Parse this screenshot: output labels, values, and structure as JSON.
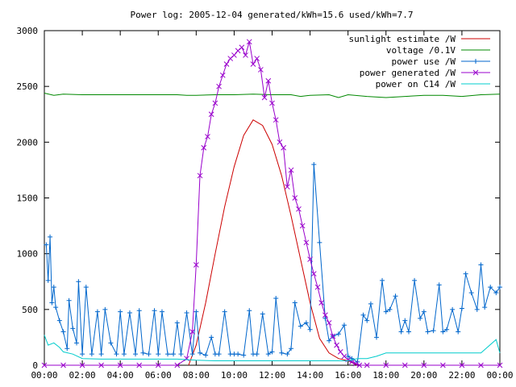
{
  "chart_data": {
    "type": "line",
    "title": "Power log: 2005-12-04 generated/kWh=15.6 used/kWh=7.7",
    "xlabel": "",
    "ylabel": "",
    "xlim": [
      0,
      24
    ],
    "ylim": [
      0,
      3000
    ],
    "x_ticks": [
      "00:00",
      "02:00",
      "04:00",
      "06:00",
      "08:00",
      "10:00",
      "12:00",
      "14:00",
      "16:00",
      "18:00",
      "20:00",
      "22:00",
      "00:00"
    ],
    "y_ticks": [
      0,
      500,
      1000,
      1500,
      2000,
      2500,
      3000
    ],
    "grid": false,
    "legend_position": "top-right",
    "series": [
      {
        "name": "sunlight estimate /W",
        "color": "#cc0000",
        "marker": "none",
        "x": [
          7.6,
          8.0,
          8.5,
          9.0,
          9.5,
          10.0,
          10.5,
          11.0,
          11.5,
          12.0,
          12.5,
          13.0,
          13.5,
          14.0,
          14.5,
          15.0,
          15.5,
          16.0,
          16.5
        ],
        "values": [
          0,
          180,
          560,
          1000,
          1420,
          1780,
          2060,
          2200,
          2150,
          1980,
          1700,
          1340,
          950,
          560,
          240,
          110,
          60,
          40,
          0
        ]
      },
      {
        "name": "voltage /0.1V",
        "color": "#008800",
        "marker": "none",
        "x": [
          0,
          0.5,
          1,
          2,
          3,
          4,
          5,
          6,
          7,
          7.5,
          8,
          9,
          10,
          11,
          12,
          13,
          13.5,
          14,
          15,
          15.5,
          16,
          17,
          18,
          19,
          20,
          21,
          22,
          23,
          24
        ],
        "values": [
          2440,
          2420,
          2430,
          2425,
          2425,
          2425,
          2425,
          2425,
          2425,
          2420,
          2420,
          2425,
          2425,
          2430,
          2425,
          2425,
          2410,
          2420,
          2425,
          2400,
          2425,
          2410,
          2400,
          2410,
          2420,
          2420,
          2410,
          2425,
          2430
        ]
      },
      {
        "name": "power use /W",
        "color": "#0066cc",
        "marker": "plus",
        "x": [
          0.1,
          0.2,
          0.3,
          0.4,
          0.5,
          0.6,
          0.8,
          1.0,
          1.2,
          1.3,
          1.5,
          1.7,
          1.8,
          2.0,
          2.2,
          2.5,
          2.8,
          3.0,
          3.2,
          3.5,
          3.8,
          4.0,
          4.2,
          4.5,
          4.8,
          5.0,
          5.2,
          5.5,
          5.8,
          6.0,
          6.2,
          6.5,
          6.8,
          7.0,
          7.2,
          7.5,
          7.8,
          8.0,
          8.2,
          8.5,
          8.8,
          9.0,
          9.2,
          9.5,
          9.8,
          10.0,
          10.2,
          10.5,
          10.8,
          11.0,
          11.2,
          11.5,
          11.8,
          12.0,
          12.2,
          12.5,
          12.8,
          13.0,
          13.2,
          13.5,
          13.8,
          14.0,
          14.2,
          14.5,
          14.8,
          15.0,
          15.2,
          15.5,
          15.8,
          16.0,
          16.2,
          16.5,
          16.8,
          17.0,
          17.2,
          17.5,
          17.8,
          18.0,
          18.2,
          18.5,
          18.8,
          19.0,
          19.2,
          19.5,
          19.8,
          20.0,
          20.2,
          20.5,
          20.8,
          21.0,
          21.2,
          21.5,
          21.8,
          22.0,
          22.2,
          22.5,
          22.8,
          23.0,
          23.2,
          23.5,
          23.8,
          24.0
        ],
        "values": [
          1080,
          760,
          1150,
          560,
          700,
          520,
          400,
          300,
          150,
          580,
          330,
          200,
          750,
          100,
          700,
          100,
          480,
          100,
          500,
          200,
          100,
          480,
          100,
          470,
          100,
          490,
          110,
          100,
          490,
          100,
          480,
          100,
          100,
          380,
          100,
          470,
          100,
          480,
          110,
          90,
          250,
          100,
          100,
          480,
          100,
          100,
          100,
          90,
          490,
          100,
          100,
          460,
          100,
          120,
          600,
          110,
          100,
          150,
          560,
          350,
          380,
          320,
          1800,
          1100,
          420,
          220,
          260,
          280,
          360,
          80,
          60,
          30,
          450,
          400,
          550,
          250,
          760,
          480,
          500,
          620,
          300,
          400,
          300,
          760,
          420,
          480,
          300,
          310,
          720,
          300,
          320,
          500,
          300,
          510,
          820,
          650,
          500,
          900,
          520,
          700,
          650,
          700
        ]
      },
      {
        "name": "power generated /W",
        "color": "#9900cc",
        "marker": "cross",
        "x": [
          0,
          1,
          2,
          3,
          4,
          5,
          6,
          7,
          7.5,
          7.8,
          8.0,
          8.2,
          8.4,
          8.6,
          8.8,
          9.0,
          9.2,
          9.4,
          9.6,
          9.8,
          10.0,
          10.2,
          10.4,
          10.6,
          10.8,
          11.0,
          11.2,
          11.4,
          11.6,
          11.8,
          12.0,
          12.2,
          12.4,
          12.6,
          12.8,
          13.0,
          13.2,
          13.4,
          13.6,
          13.8,
          14.0,
          14.2,
          14.4,
          14.6,
          14.8,
          15.0,
          15.2,
          15.4,
          15.6,
          15.8,
          16.0,
          16.2,
          16.4,
          16.6,
          17,
          18,
          19,
          20,
          21,
          22,
          23,
          24
        ],
        "values": [
          0,
          0,
          0,
          0,
          0,
          0,
          0,
          0,
          60,
          300,
          900,
          1700,
          1950,
          2050,
          2250,
          2350,
          2500,
          2600,
          2700,
          2750,
          2780,
          2820,
          2850,
          2780,
          2900,
          2700,
          2750,
          2650,
          2400,
          2550,
          2350,
          2200,
          2000,
          1950,
          1600,
          1750,
          1500,
          1400,
          1250,
          1100,
          950,
          820,
          700,
          560,
          450,
          380,
          260,
          180,
          120,
          80,
          50,
          30,
          15,
          0,
          0,
          0,
          0,
          0,
          0,
          0,
          0,
          0
        ]
      },
      {
        "name": "power on C14 /W",
        "color": "#00cccc",
        "marker": "none",
        "x": [
          0,
          0.2,
          0.5,
          0.8,
          1.0,
          1.5,
          2.0,
          3.0,
          4.0,
          5.0,
          6.0,
          7.0,
          8.0,
          9.0,
          10.0,
          11.0,
          12.0,
          13.0,
          14.0,
          15.0,
          16.0,
          16.5,
          17.0,
          17.5,
          18.0,
          19.0,
          20.0,
          21.0,
          22.0,
          23.0,
          23.8,
          24.0
        ],
        "values": [
          270,
          180,
          200,
          160,
          120,
          100,
          60,
          55,
          55,
          55,
          55,
          55,
          45,
          40,
          40,
          40,
          40,
          40,
          40,
          40,
          40,
          60,
          60,
          80,
          110,
          110,
          110,
          110,
          110,
          110,
          230,
          110
        ]
      }
    ]
  }
}
